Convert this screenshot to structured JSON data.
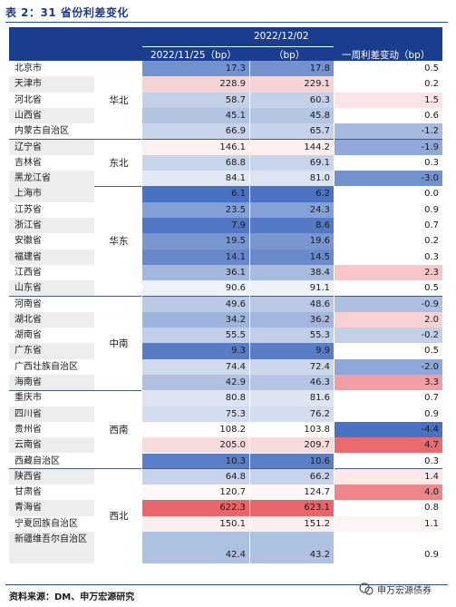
{
  "title": "表 2：31 省份利差变化",
  "header": {
    "date_top": "2022/12/02",
    "col1": "2022/11/25（bp）",
    "col2": "（bp）",
    "col3": "一周利差变动（bp）"
  },
  "groups": [
    {
      "region": "华北",
      "rows": [
        {
          "province": "北京市",
          "v1": 17.3,
          "v2": 17.8,
          "v3": 0.5,
          "shade": false
        },
        {
          "province": "天津市",
          "v1": 228.9,
          "v2": 229.1,
          "v3": 0.2,
          "shade": true
        },
        {
          "province": "河北省",
          "v1": 58.7,
          "v2": 60.3,
          "v3": 1.5,
          "shade": false
        },
        {
          "province": "山西省",
          "v1": 45.1,
          "v2": 45.8,
          "v3": 0.6,
          "shade": true
        },
        {
          "province": "内蒙古自治区",
          "v1": 66.9,
          "v2": 65.7,
          "v3": -1.2,
          "shade": false
        }
      ]
    },
    {
      "region": "东北",
      "rows": [
        {
          "province": "辽宁省",
          "v1": 146.1,
          "v2": 144.2,
          "v3": -1.9,
          "shade": true
        },
        {
          "province": "吉林省",
          "v1": 68.8,
          "v2": 69.1,
          "v3": 0.3,
          "shade": false
        },
        {
          "province": "黑龙江省",
          "v1": 84.1,
          "v2": 81.0,
          "v3": -3.0,
          "shade": true
        }
      ]
    },
    {
      "region": "华东",
      "rows": [
        {
          "province": "上海市",
          "v1": 6.1,
          "v2": 6.2,
          "v3": 0.0,
          "shade": true
        },
        {
          "province": "江苏省",
          "v1": 23.5,
          "v2": 24.3,
          "v3": 0.9,
          "shade": false
        },
        {
          "province": "浙江省",
          "v1": 7.9,
          "v2": 8.6,
          "v3": 0.7,
          "shade": true
        },
        {
          "province": "安徽省",
          "v1": 19.5,
          "v2": 19.6,
          "v3": 0.2,
          "shade": false
        },
        {
          "province": "福建省",
          "v1": 14.1,
          "v2": 14.5,
          "v3": 0.3,
          "shade": true
        },
        {
          "province": "江西省",
          "v1": 36.1,
          "v2": 38.4,
          "v3": 2.3,
          "shade": false
        },
        {
          "province": "山东省",
          "v1": 90.6,
          "v2": 91.1,
          "v3": 0.5,
          "shade": true
        }
      ]
    },
    {
      "region": "中南",
      "rows": [
        {
          "province": "河南省",
          "v1": 49.6,
          "v2": 48.6,
          "v3": -0.9,
          "shade": false
        },
        {
          "province": "湖北省",
          "v1": 34.2,
          "v2": 36.2,
          "v3": 2.0,
          "shade": true
        },
        {
          "province": "湖南省",
          "v1": 55.5,
          "v2": 55.3,
          "v3": -0.2,
          "shade": false
        },
        {
          "province": "广东省",
          "v1": 9.3,
          "v2": 9.9,
          "v3": 0.5,
          "shade": true
        },
        {
          "province": "广西壮族自治区",
          "v1": 74.4,
          "v2": 72.4,
          "v3": -2.0,
          "shade": false
        },
        {
          "province": "海南省",
          "v1": 42.9,
          "v2": 46.3,
          "v3": 3.3,
          "shade": true
        }
      ]
    },
    {
      "region": "西南",
      "rows": [
        {
          "province": "重庆市",
          "v1": 80.8,
          "v2": 81.6,
          "v3": 0.7,
          "shade": false
        },
        {
          "province": "四川省",
          "v1": 75.3,
          "v2": 76.2,
          "v3": 0.9,
          "shade": true
        },
        {
          "province": "贵州省",
          "v1": 108.2,
          "v2": 103.8,
          "v3": -4.4,
          "shade": false
        },
        {
          "province": "云南省",
          "v1": 205.0,
          "v2": 209.7,
          "v3": 4.7,
          "shade": true
        },
        {
          "province": "西藏自治区",
          "v1": 10.3,
          "v2": 10.6,
          "v3": 0.3,
          "shade": false
        }
      ]
    },
    {
      "region": "西北",
      "rows": [
        {
          "province": "陕西省",
          "v1": 64.8,
          "v2": 66.2,
          "v3": 1.4,
          "shade": true
        },
        {
          "province": "甘肃省",
          "v1": 120.7,
          "v2": 124.7,
          "v3": 4.0,
          "shade": false
        },
        {
          "province": "青海省",
          "v1": 622.3,
          "v2": 623.1,
          "v3": 0.8,
          "shade": true
        },
        {
          "province": "宁夏回族自治区",
          "v1": 150.1,
          "v2": 151.2,
          "v3": 1.1,
          "shade": false
        },
        {
          "province": "新疆维吾尔自治区",
          "v1": 42.4,
          "v2": 43.2,
          "v3": 0.9,
          "shade": true,
          "tall": true
        }
      ]
    }
  ],
  "source": "资料来源：DM、申万宏源研究",
  "logo_text": "申万宏源债券",
  "colors": {
    "header": "#1a3d8f",
    "blue_strong": "#4a72c2",
    "red_strong": "#e8666b"
  }
}
